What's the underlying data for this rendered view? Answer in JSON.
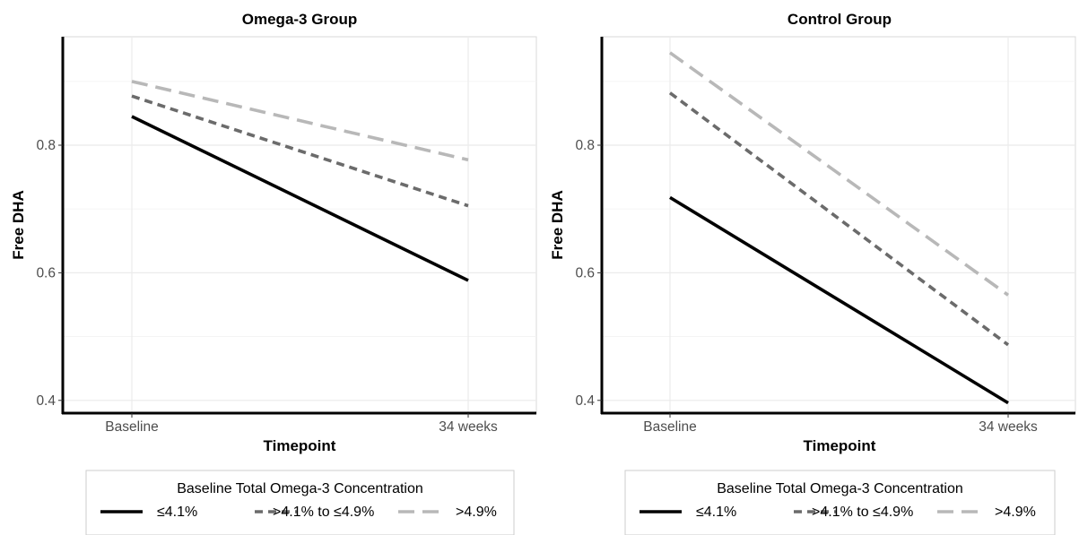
{
  "colors": {
    "series1": "#000000",
    "series2": "#6b6b6b",
    "series3": "#b8b8b8",
    "grid": "#ebebeb",
    "axis": "#000000",
    "tick_text": "#4d4d4d",
    "legend_border": "#cccccc"
  },
  "chart_data": [
    {
      "type": "line",
      "title": "Omega-3 Group",
      "xlabel": "Timepoint",
      "ylabel": "Free DHA",
      "categories": [
        "Baseline",
        "34 weeks"
      ],
      "ylim": [
        0.38,
        0.97
      ],
      "yticks": [
        0.4,
        0.6,
        0.8
      ],
      "ytick_labels": [
        "0.4",
        "0.6",
        "0.8"
      ],
      "grid": true,
      "legend_position": "bottom",
      "legend_title": "Baseline Total Omega-3 Concentration",
      "series": [
        {
          "name": "≤4.1%",
          "values": [
            0.845,
            0.588
          ],
          "color": "#000000",
          "dash": "solid"
        },
        {
          "name": ">4.1% to ≤4.9%",
          "values": [
            0.877,
            0.705
          ],
          "color": "#6b6b6b",
          "dash": "dotted"
        },
        {
          "name": ">4.9%",
          "values": [
            0.9,
            0.777
          ],
          "color": "#b8b8b8",
          "dash": "dashed"
        }
      ]
    },
    {
      "type": "line",
      "title": "Control Group",
      "xlabel": "Timepoint",
      "ylabel": "Free DHA",
      "categories": [
        "Baseline",
        "34 weeks"
      ],
      "ylim": [
        0.38,
        0.97
      ],
      "yticks": [
        0.4,
        0.6,
        0.8
      ],
      "ytick_labels": [
        "0.4",
        "0.6",
        "0.8"
      ],
      "grid": true,
      "legend_position": "bottom",
      "legend_title": "Baseline Total Omega-3 Concentration",
      "series": [
        {
          "name": "≤4.1%",
          "values": [
            0.718,
            0.396
          ],
          "color": "#000000",
          "dash": "solid"
        },
        {
          "name": ">4.1% to ≤4.9%",
          "values": [
            0.882,
            0.487
          ],
          "color": "#6b6b6b",
          "dash": "dotted"
        },
        {
          "name": ">4.9%",
          "values": [
            0.945,
            0.565
          ],
          "color": "#b8b8b8",
          "dash": "dashed"
        }
      ]
    }
  ]
}
